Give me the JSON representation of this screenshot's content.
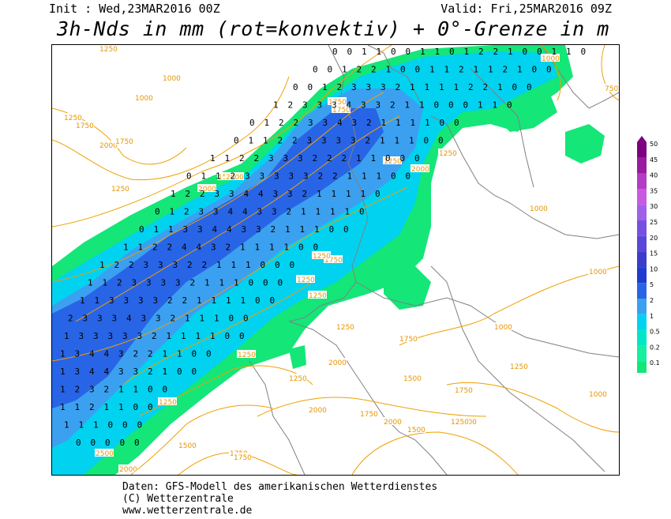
{
  "header": {
    "init": "Init : Wed,23MAR2016 00Z",
    "valid": "Valid: Fri,25MAR2016 09Z",
    "title": "3h-Nds in mm (rot=konvektiv) + 0°-Grenze in m"
  },
  "legend": {
    "levels": [
      "50",
      "45",
      "40",
      "35",
      "30",
      "25",
      "20",
      "15",
      "10",
      "5",
      "2",
      "1",
      "0.5",
      "0.2",
      "0.1"
    ],
    "colors": [
      "#7d0080",
      "#9a1aa0",
      "#b43cc4",
      "#c85ae0",
      "#a060e8",
      "#7850e0",
      "#5a46d8",
      "#3c3ccc",
      "#1e3cd0",
      "#2864e6",
      "#3ca0f0",
      "#00d2f0",
      "#00e6c8",
      "#14f0a0",
      "#14e678"
    ]
  },
  "map": {
    "freezing_level_labels": [
      "1250",
      "1000",
      "1250",
      "1000",
      "1750",
      "2000",
      "1750",
      "1250",
      "1500",
      "1750",
      "1750",
      "2000",
      "2000",
      "1250",
      "1250",
      "2000",
      "1750",
      "1250",
      "1250",
      "1250",
      "1250",
      "1000",
      "750",
      "1000",
      "1250",
      "1250",
      "1750",
      "1500",
      "2000",
      "1750",
      "1500",
      "2000",
      "1500",
      "1250",
      "2500",
      "2000",
      "1500",
      "1750",
      "1000",
      "1000",
      "1750",
      "1750",
      "2000",
      "1250",
      "1000",
      "1250"
    ],
    "precip_values": [
      "0 0 1 1 0 0 1 1 0 1 2 2 1 0 0 1 1 0",
      "0 0 1 2 2 1 0 0 1 1 2 1 1 2 1 0 0",
      "0 0 1 2 3 3 3 2 1 1 1 1 2 2 1 0 0",
      "1 2 3 3 3 4 3 3 2 1 1 0 0 0 1 1 0",
      "0 1 2 2 3 3 4 3 2 1 1 1 1 0 0",
      "0 1 1 2 2 3 3 3 3 2 1 1 1 0 0",
      "1 1 2 2 3 3 3 2 2 2 1 1 0 0 0",
      "0 1 1 2 3 3 3 3 3 2 2 1 1 1 0 0",
      "1 2 2 3 3 4 4 3 3 2 1 1 1 1 0",
      "0 1 2 3 3 4 4 3 3 2 1 1 1 1 0",
      "0 1 1 3 3 4 4 3 3 2 1 1 1 0 0",
      "1 1 2 2 4 4 3 2 1 1 1 1 0 0",
      "1 2 2 3 3 3 2 2 1 1 1 0 0 0",
      "1 1 2 3 3 3 3 2 1 1 1 0 0 0",
      "1 1 3 3 3 3 2 2 1 1 1 1 0 0",
      "2 3 3 3 4 3 3 2 1 1 1 0 0",
      "1 3 3 3 3 3 2 1 1 1 1 0 0",
      "1 3 4 4 3 2 2 1 1 0 0",
      "1 3 4 4 3 3 2 1 0 0",
      "1 2 3 2 1 1 0 0",
      "1 1 2 1 1 0 0",
      "1 1 1 0 0 0",
      "0 0 0 0 0"
    ]
  },
  "footer": {
    "line1": "Daten: GFS-Modell des amerikanischen Wetterdienstes",
    "line2": "(C) Wetterzentrale",
    "line3": "www.wetterzentrale.de"
  }
}
